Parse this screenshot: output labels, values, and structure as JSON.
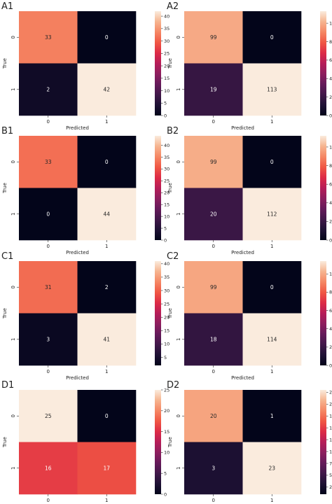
{
  "chart_data": [
    {
      "panel": "A1",
      "type": "heatmap",
      "x_categories": [
        "0",
        "1"
      ],
      "y_categories": [
        "0",
        "1"
      ],
      "xlabel": "Predicted",
      "ylabel": "True",
      "matrix": [
        [
          33,
          0
        ],
        [
          2,
          42
        ]
      ],
      "colorbar_range": [
        0,
        42
      ],
      "colorbar_ticks": [
        0,
        5,
        10,
        15,
        20,
        25,
        30,
        35,
        40
      ],
      "colormap": "rocket"
    },
    {
      "panel": "A2",
      "type": "heatmap",
      "x_categories": [
        "0",
        "1"
      ],
      "y_categories": [
        "0",
        "1"
      ],
      "xlabel": "Predicted",
      "ylabel": "True",
      "matrix": [
        [
          99,
          0
        ],
        [
          19,
          113
        ]
      ],
      "colorbar_range": [
        0,
        113
      ],
      "colorbar_ticks": [
        0,
        20,
        40,
        60,
        80,
        100
      ],
      "colormap": "rocket"
    },
    {
      "panel": "B1",
      "type": "heatmap",
      "x_categories": [
        "0",
        "1"
      ],
      "y_categories": [
        "0",
        "1"
      ],
      "xlabel": "Predicted",
      "ylabel": "True",
      "matrix": [
        [
          33,
          0
        ],
        [
          0,
          44
        ]
      ],
      "colorbar_range": [
        0,
        44
      ],
      "colorbar_ticks": [
        0,
        5,
        10,
        15,
        20,
        25,
        30,
        35,
        40
      ],
      "colormap": "rocket"
    },
    {
      "panel": "B2",
      "type": "heatmap",
      "x_categories": [
        "0",
        "1"
      ],
      "y_categories": [
        "0",
        "1"
      ],
      "xlabel": "Predicted",
      "ylabel": "True",
      "matrix": [
        [
          99,
          0
        ],
        [
          20,
          112
        ]
      ],
      "colorbar_range": [
        0,
        112
      ],
      "colorbar_ticks": [
        0,
        20,
        40,
        60,
        80,
        100
      ],
      "colormap": "rocket"
    },
    {
      "panel": "C1",
      "type": "heatmap",
      "x_categories": [
        "0",
        "1"
      ],
      "y_categories": [
        "0",
        "1"
      ],
      "xlabel": "Predicted",
      "ylabel": "True",
      "matrix": [
        [
          31,
          2
        ],
        [
          3,
          41
        ]
      ],
      "colorbar_range": [
        2,
        41
      ],
      "colorbar_ticks": [
        5,
        10,
        15,
        20,
        25,
        30,
        35,
        40
      ],
      "colormap": "rocket"
    },
    {
      "panel": "C2",
      "type": "heatmap",
      "x_categories": [
        "0",
        "1"
      ],
      "y_categories": [
        "0",
        "1"
      ],
      "xlabel": "Predicted",
      "ylabel": "True",
      "matrix": [
        [
          99,
          0
        ],
        [
          18,
          114
        ]
      ],
      "colorbar_range": [
        0,
        114
      ],
      "colorbar_ticks": [
        0,
        20,
        40,
        60,
        80,
        100
      ],
      "colormap": "rocket"
    },
    {
      "panel": "D1",
      "type": "heatmap",
      "x_categories": [
        "0",
        "1"
      ],
      "y_categories": [
        "0",
        "1"
      ],
      "xlabel": "Predicted",
      "ylabel": "True",
      "matrix": [
        [
          25,
          0
        ],
        [
          16,
          17
        ]
      ],
      "colorbar_range": [
        0,
        25
      ],
      "colorbar_ticks": [
        0,
        5,
        10,
        15,
        20,
        25
      ],
      "colormap": "rocket"
    },
    {
      "panel": "D2",
      "type": "heatmap",
      "x_categories": [
        "0",
        "1"
      ],
      "y_categories": [
        "0",
        "1"
      ],
      "xlabel": "Predicted",
      "ylabel": "True",
      "matrix": [
        [
          20,
          1
        ],
        [
          3,
          23
        ]
      ],
      "colorbar_range": [
        1,
        23
      ],
      "colorbar_ticks": [
        2.5,
        5.0,
        7.5,
        10.0,
        12.5,
        15.0,
        17.5,
        20.0,
        22.5
      ],
      "colormap": "rocket"
    }
  ]
}
